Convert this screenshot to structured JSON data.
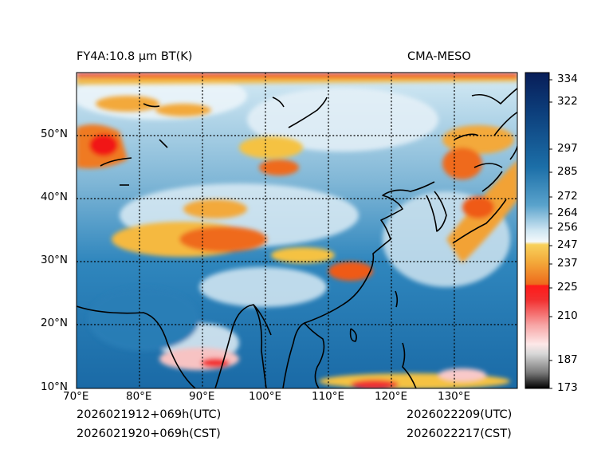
{
  "header": {
    "left_title": "FY4A:10.8 µm BT(K)",
    "right_title": "CMA-MESO"
  },
  "footer": {
    "init_utc": "2026021912+069h(UTC)",
    "init_cst": "2026021920+069h(CST)",
    "valid_utc": "2026022209(UTC)",
    "valid_cst": "2026022217(CST)"
  },
  "map": {
    "lon_range": [
      70,
      140
    ],
    "lat_range": [
      10,
      60
    ],
    "lon_ticks": [
      "70°E",
      "80°E",
      "90°E",
      "100°E",
      "110°E",
      "120°E",
      "130°E"
    ],
    "lat_ticks": [
      "10°N",
      "20°N",
      "30°N",
      "40°N",
      "50°N"
    ],
    "gridlines": "dotted"
  },
  "colorbar": {
    "ticks": [
      "334",
      "322",
      "297",
      "285",
      "272",
      "264",
      "256",
      "247",
      "237",
      "225",
      "210",
      "187",
      "173"
    ],
    "colors": {
      "high": "#081d58",
      "blue": "#2c7fb8",
      "light": "#e8f4fb",
      "yellow": "#f5c242",
      "orange": "#ef6a1a",
      "red": "#f00a0a",
      "pink": "#f9c9c9",
      "low": "#000000"
    }
  }
}
